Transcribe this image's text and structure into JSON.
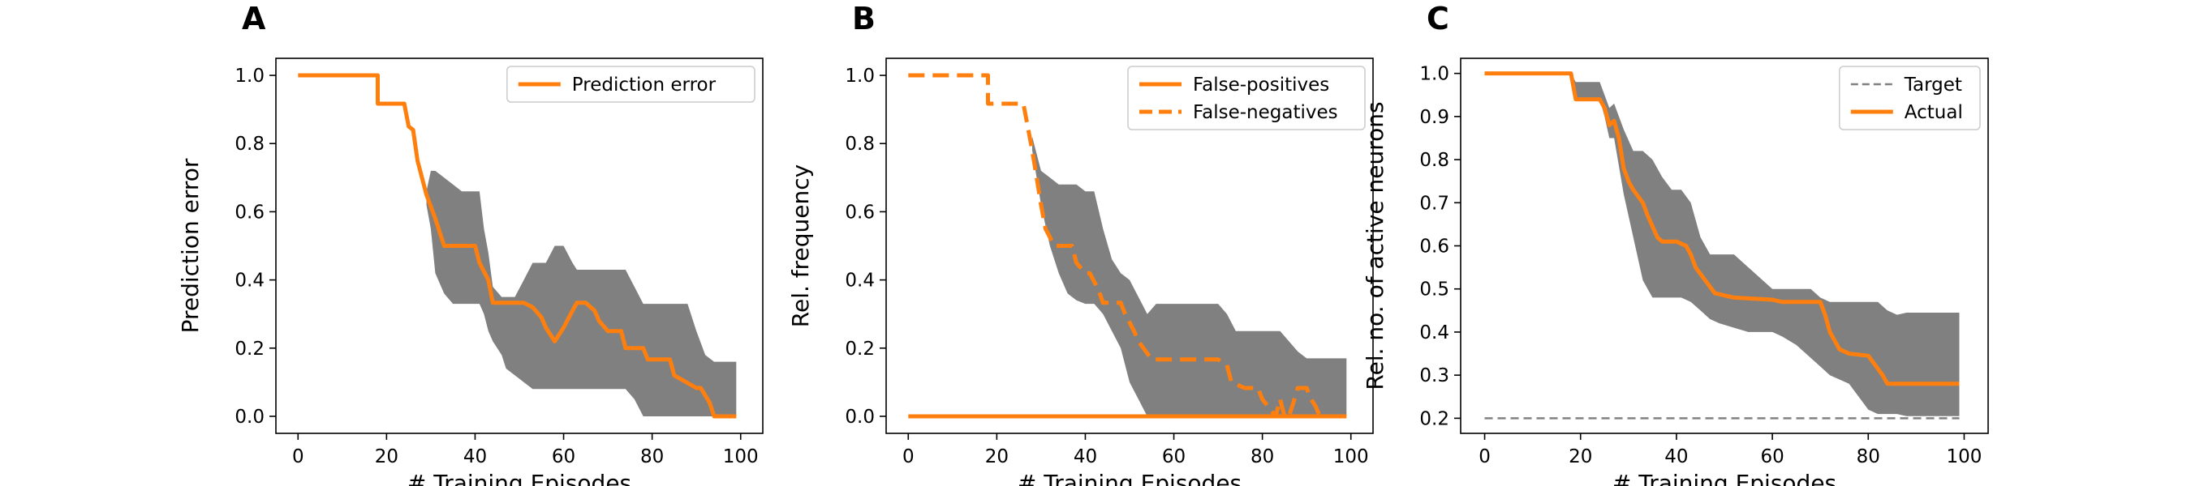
{
  "chart_data": [
    {
      "panel_label": "A",
      "type": "line",
      "xlabel": "# Training Episodes",
      "ylabel": "Prediction error",
      "xlim": [
        -5,
        105
      ],
      "ylim": [
        -0.05,
        1.05
      ],
      "xticks": [
        0,
        20,
        40,
        60,
        80,
        100
      ],
      "yticks": [
        0.0,
        0.2,
        0.4,
        0.6,
        0.8,
        1.0
      ],
      "legend_position": "top-right",
      "series": [
        {
          "name": "Prediction error",
          "style": "solid",
          "color": "#ff7f0e",
          "x": [
            0,
            18,
            18,
            24,
            25,
            26,
            27,
            29,
            31,
            33,
            34,
            40,
            41,
            43,
            44,
            50,
            51,
            53,
            55,
            56,
            58,
            60,
            62,
            63,
            65,
            67,
            68,
            70,
            71,
            73,
            74,
            78,
            79,
            84,
            85,
            90,
            91,
            93,
            94,
            99
          ],
          "y": [
            1.0,
            1.0,
            0.917,
            0.917,
            0.85,
            0.84,
            0.75,
            0.65,
            0.58,
            0.5,
            0.5,
            0.5,
            0.45,
            0.4,
            0.333,
            0.333,
            0.333,
            0.32,
            0.29,
            0.26,
            0.22,
            0.26,
            0.31,
            0.333,
            0.333,
            0.31,
            0.28,
            0.25,
            0.25,
            0.25,
            0.2,
            0.2,
            0.167,
            0.167,
            0.12,
            0.083,
            0.083,
            0.04,
            0.0,
            0.0
          ]
        }
      ],
      "band": {
        "color": "#808080",
        "x": [
          29,
          30,
          31,
          33,
          35,
          37,
          38,
          40,
          41,
          42,
          43,
          44,
          46,
          47,
          49,
          51,
          53,
          56,
          58,
          60,
          62,
          63,
          65,
          66,
          67,
          68,
          70,
          72,
          74,
          76,
          78,
          80,
          82,
          84,
          86,
          88,
          90,
          92,
          94,
          96,
          98,
          99
        ],
        "upper": [
          0.66,
          0.72,
          0.72,
          0.7,
          0.68,
          0.66,
          0.66,
          0.66,
          0.66,
          0.55,
          0.48,
          0.38,
          0.35,
          0.35,
          0.35,
          0.4,
          0.45,
          0.45,
          0.5,
          0.5,
          0.45,
          0.43,
          0.43,
          0.43,
          0.43,
          0.43,
          0.43,
          0.43,
          0.43,
          0.38,
          0.33,
          0.33,
          0.33,
          0.33,
          0.33,
          0.33,
          0.25,
          0.18,
          0.16,
          0.16,
          0.16,
          0.16
        ],
        "lower": [
          0.62,
          0.55,
          0.42,
          0.36,
          0.33,
          0.33,
          0.33,
          0.33,
          0.33,
          0.3,
          0.25,
          0.22,
          0.18,
          0.14,
          0.12,
          0.1,
          0.08,
          0.08,
          0.08,
          0.08,
          0.08,
          0.08,
          0.08,
          0.08,
          0.08,
          0.08,
          0.08,
          0.08,
          0.08,
          0.05,
          0.0,
          0.0,
          0.0,
          0.0,
          0.0,
          0.0,
          0.0,
          0.0,
          0.0,
          0.0,
          0.0,
          0.0
        ]
      }
    },
    {
      "panel_label": "B",
      "type": "line",
      "xlabel": "# Training Episodes",
      "ylabel": "Rel. frequency",
      "xlim": [
        -5,
        105
      ],
      "ylim": [
        -0.05,
        1.05
      ],
      "xticks": [
        0,
        20,
        40,
        60,
        80,
        100
      ],
      "yticks": [
        0.0,
        0.2,
        0.4,
        0.6,
        0.8,
        1.0
      ],
      "legend_position": "top-right",
      "series": [
        {
          "name": "False-positives",
          "style": "solid",
          "color": "#ff7f0e",
          "x": [
            0,
            99
          ],
          "y": [
            0.0,
            0.0
          ]
        },
        {
          "name": "False-negatives",
          "style": "dashed",
          "color": "#ff7f0e",
          "x": [
            0,
            18,
            18,
            22,
            23,
            26,
            27,
            28,
            29,
            30,
            31,
            33,
            34,
            37,
            38,
            40,
            41,
            43,
            44,
            48,
            49,
            51,
            52,
            55,
            56,
            69,
            70,
            72,
            73,
            76,
            77,
            79,
            80,
            83,
            84,
            85,
            86,
            87,
            88,
            90,
            91,
            92,
            93
          ],
          "y": [
            1.0,
            1.0,
            0.917,
            0.917,
            0.917,
            0.917,
            0.85,
            0.78,
            0.7,
            0.62,
            0.55,
            0.5,
            0.5,
            0.5,
            0.45,
            0.42,
            0.42,
            0.37,
            0.333,
            0.333,
            0.3,
            0.25,
            0.22,
            0.167,
            0.167,
            0.167,
            0.167,
            0.15,
            0.1,
            0.083,
            0.083,
            0.083,
            0.05,
            0.0,
            0.05,
            0.0,
            0.0,
            0.04,
            0.083,
            0.083,
            0.05,
            0.03,
            0.0
          ]
        }
      ],
      "band": {
        "color": "#808080",
        "x": [
          28,
          30,
          32,
          34,
          36,
          38,
          40,
          42,
          44,
          46,
          48,
          50,
          52,
          54,
          56,
          58,
          60,
          62,
          64,
          66,
          68,
          70,
          72,
          74,
          76,
          78,
          80,
          82,
          84,
          86,
          88,
          90,
          92,
          94,
          96,
          98,
          99
        ],
        "upper": [
          0.82,
          0.72,
          0.7,
          0.68,
          0.68,
          0.68,
          0.66,
          0.66,
          0.55,
          0.46,
          0.42,
          0.4,
          0.35,
          0.3,
          0.33,
          0.33,
          0.33,
          0.33,
          0.33,
          0.33,
          0.33,
          0.33,
          0.3,
          0.25,
          0.25,
          0.25,
          0.25,
          0.25,
          0.25,
          0.22,
          0.19,
          0.17,
          0.17,
          0.17,
          0.17,
          0.17,
          0.17
        ],
        "lower": [
          0.78,
          0.62,
          0.5,
          0.42,
          0.36,
          0.34,
          0.33,
          0.33,
          0.3,
          0.25,
          0.2,
          0.1,
          0.05,
          0.0,
          0.0,
          0.0,
          0.0,
          0.0,
          0.0,
          0.0,
          0.0,
          0.0,
          0.0,
          0.0,
          0.0,
          0.0,
          0.0,
          0.0,
          0.0,
          0.0,
          0.0,
          0.0,
          0.0,
          0.0,
          0.0,
          0.0,
          0.0
        ]
      }
    },
    {
      "panel_label": "C",
      "type": "line",
      "xlabel": "# Training Episodes",
      "ylabel": "Rel. no. of active neurons",
      "xlim": [
        -5,
        105
      ],
      "ylim": [
        0.165,
        1.035
      ],
      "xticks": [
        0,
        20,
        40,
        60,
        80,
        100
      ],
      "yticks": [
        0.2,
        0.3,
        0.4,
        0.5,
        0.6,
        0.7,
        0.8,
        0.9,
        1.0
      ],
      "legend_position": "top-right",
      "series": [
        {
          "name": "Target",
          "style": "dashed",
          "color": "#808080",
          "x": [
            0,
            99
          ],
          "y": [
            0.2,
            0.2
          ]
        },
        {
          "name": "Actual",
          "style": "solid",
          "color": "#ff7f0e",
          "x": [
            0,
            18,
            19,
            24,
            25,
            26,
            27,
            28,
            29,
            30,
            31,
            33,
            34,
            36,
            37,
            38,
            40,
            42,
            43,
            44,
            46,
            48,
            50,
            52,
            55,
            60,
            62,
            70,
            71,
            72,
            74,
            76,
            80,
            81,
            83,
            84,
            86,
            99
          ],
          "y": [
            1.0,
            1.0,
            0.94,
            0.94,
            0.92,
            0.88,
            0.89,
            0.85,
            0.78,
            0.75,
            0.73,
            0.7,
            0.67,
            0.62,
            0.61,
            0.61,
            0.61,
            0.6,
            0.58,
            0.55,
            0.52,
            0.49,
            0.485,
            0.48,
            0.478,
            0.475,
            0.47,
            0.47,
            0.44,
            0.4,
            0.36,
            0.35,
            0.345,
            0.33,
            0.3,
            0.28,
            0.28,
            0.28
          ]
        }
      ],
      "band": {
        "color": "#808080",
        "x": [
          18,
          19,
          24,
          25,
          26,
          27,
          29,
          31,
          33,
          35,
          37,
          39,
          41,
          43,
          45,
          47,
          49,
          52,
          55,
          58,
          60,
          62,
          65,
          68,
          70,
          72,
          74,
          76,
          78,
          80,
          82,
          84,
          86,
          88,
          90,
          92,
          94,
          96,
          98,
          99
        ],
        "upper": [
          1.0,
          0.98,
          0.98,
          0.95,
          0.92,
          0.93,
          0.87,
          0.82,
          0.82,
          0.8,
          0.76,
          0.73,
          0.73,
          0.7,
          0.62,
          0.58,
          0.58,
          0.58,
          0.55,
          0.52,
          0.5,
          0.5,
          0.5,
          0.5,
          0.48,
          0.47,
          0.47,
          0.47,
          0.47,
          0.47,
          0.47,
          0.45,
          0.44,
          0.445,
          0.445,
          0.445,
          0.445,
          0.445,
          0.445,
          0.445
        ],
        "lower": [
          1.0,
          0.94,
          0.94,
          0.9,
          0.85,
          0.85,
          0.72,
          0.62,
          0.52,
          0.48,
          0.48,
          0.48,
          0.48,
          0.47,
          0.45,
          0.43,
          0.42,
          0.41,
          0.4,
          0.4,
          0.4,
          0.39,
          0.37,
          0.34,
          0.32,
          0.3,
          0.29,
          0.28,
          0.25,
          0.22,
          0.21,
          0.21,
          0.21,
          0.205,
          0.205,
          0.205,
          0.205,
          0.205,
          0.205,
          0.205
        ]
      }
    }
  ]
}
